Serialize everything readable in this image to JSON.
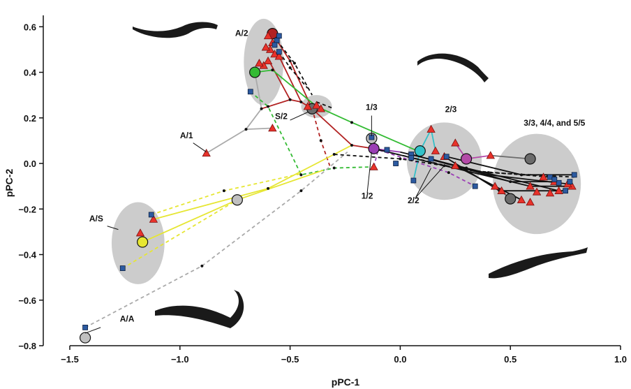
{
  "chart_data": {
    "type": "scatter",
    "title": "",
    "xlabel": "pPC-1",
    "ylabel": "pPC-2",
    "xlim": [
      -1.5,
      1.0
    ],
    "ylim": [
      -0.8,
      0.65
    ],
    "x_ticks": [
      "−1.5",
      "−1.0",
      "−0.5",
      "0.0",
      "0.5",
      "1.0"
    ],
    "y_ticks": [
      "−0.8",
      "−0.6",
      "−0.4",
      "−0.2",
      "0.0",
      "0.2",
      "0.4",
      "0.6"
    ],
    "x_tick_values": [
      -1.5,
      -1.0,
      -0.5,
      0.0,
      0.5,
      1.0
    ],
    "y_tick_values": [
      -0.8,
      -0.6,
      -0.4,
      -0.2,
      0.0,
      0.2,
      0.4,
      0.6
    ],
    "grid": false,
    "group_labels": [
      {
        "text": "A/2",
        "x": -0.72,
        "y": 0.56
      },
      {
        "text": "A/1",
        "x": -0.97,
        "y": 0.11
      },
      {
        "text": "S/2",
        "x": -0.54,
        "y": 0.195
      },
      {
        "text": "1/3",
        "x": -0.13,
        "y": 0.235
      },
      {
        "text": "2/3",
        "x": 0.23,
        "y": 0.225
      },
      {
        "text": "3/3, 4/4, and 5/5",
        "x": 0.7,
        "y": 0.165
      },
      {
        "text": "1/2",
        "x": -0.15,
        "y": -0.155
      },
      {
        "text": "2/2",
        "x": 0.06,
        "y": -0.175
      },
      {
        "text": "A/S",
        "x": -1.38,
        "y": -0.255
      },
      {
        "text": "A/A",
        "x": -1.24,
        "y": -0.695
      }
    ],
    "ellipses": [
      {
        "cx": -0.62,
        "cy": 0.445,
        "rx": 0.09,
        "ry": 0.19,
        "fill": "#cccccc"
      },
      {
        "cx": -0.38,
        "cy": 0.25,
        "rx": 0.07,
        "ry": 0.05,
        "fill": "#cccccc"
      },
      {
        "cx": 0.2,
        "cy": 0.01,
        "rx": 0.17,
        "ry": 0.17,
        "fill": "#cccccc"
      },
      {
        "cx": 0.62,
        "cy": -0.09,
        "rx": 0.2,
        "ry": 0.22,
        "fill": "#cccccc"
      },
      {
        "cx": -1.19,
        "cy": -0.35,
        "rx": 0.12,
        "ry": 0.18,
        "fill": "#cccccc"
      }
    ],
    "means": [
      {
        "name": "A/2 red",
        "x": -0.58,
        "y": 0.57,
        "color": "#b22222"
      },
      {
        "name": "A/2 green",
        "x": -0.66,
        "y": 0.4,
        "color": "#33bb33"
      },
      {
        "name": "S/2",
        "x": -0.4,
        "y": 0.24,
        "color": "#6b6b6b"
      },
      {
        "name": "1/3",
        "x": -0.13,
        "y": 0.11,
        "color": "#c0c0c0"
      },
      {
        "name": "1/2",
        "x": -0.12,
        "y": 0.065,
        "color": "#9b3fb5"
      },
      {
        "name": "2/3",
        "x": 0.09,
        "y": 0.055,
        "color": "#33c0c8"
      },
      {
        "name": "2/3 magenta",
        "x": 0.3,
        "y": 0.02,
        "color": "#b44aa8"
      },
      {
        "name": "3/3",
        "x": 0.59,
        "y": 0.02,
        "color": "#6b6b6b"
      },
      {
        "name": "5/5",
        "x": 0.5,
        "y": -0.155,
        "color": "#6b6b6b"
      },
      {
        "name": "mid",
        "x": -0.74,
        "y": -0.16,
        "color": "#c0c0c0"
      },
      {
        "name": "A/S",
        "x": -1.17,
        "y": -0.345,
        "color": "#e6e633"
      },
      {
        "name": "A/A",
        "x": -1.43,
        "y": -0.765,
        "color": "#c0c0c0"
      }
    ],
    "triangles": [
      [
        -0.6,
        0.56
      ],
      [
        -0.58,
        0.53
      ],
      [
        -0.59,
        0.5
      ],
      [
        -0.57,
        0.48
      ],
      [
        -0.6,
        0.45
      ],
      [
        -0.62,
        0.43
      ],
      [
        -0.64,
        0.44
      ],
      [
        -0.55,
        0.47
      ],
      [
        -0.61,
        0.51
      ],
      [
        -0.38,
        0.255
      ],
      [
        -0.42,
        0.25
      ],
      [
        -0.36,
        0.24
      ],
      [
        -0.88,
        0.045
      ],
      [
        -0.58,
        0.155
      ],
      [
        -0.12,
        -0.015
      ],
      [
        0.14,
        0.15
      ],
      [
        0.25,
        0.09
      ],
      [
        0.16,
        0.055
      ],
      [
        0.2,
        0.03
      ],
      [
        0.41,
        0.035
      ],
      [
        0.25,
        -0.01
      ],
      [
        0.43,
        -0.1
      ],
      [
        0.46,
        -0.12
      ],
      [
        0.55,
        -0.16
      ],
      [
        0.59,
        -0.17
      ],
      [
        0.59,
        -0.1
      ],
      [
        0.65,
        -0.06
      ],
      [
        0.7,
        -0.08
      ],
      [
        0.72,
        -0.12
      ],
      [
        0.78,
        -0.1
      ],
      [
        0.68,
        -0.13
      ],
      [
        0.76,
        -0.09
      ],
      [
        0.62,
        -0.125
      ],
      [
        -1.12,
        -0.245
      ],
      [
        -1.18,
        -0.305
      ]
    ],
    "squares": [
      [
        -0.55,
        0.56
      ],
      [
        -0.56,
        0.54
      ],
      [
        -0.57,
        0.52
      ],
      [
        -0.55,
        0.49
      ],
      [
        -0.68,
        0.315
      ],
      [
        -0.13,
        0.115
      ],
      [
        -0.06,
        0.06
      ],
      [
        0.05,
        0.04
      ],
      [
        0.14,
        0.02
      ],
      [
        0.05,
        0.025
      ],
      [
        -0.02,
        0.0
      ],
      [
        0.21,
        0.03
      ],
      [
        0.06,
        -0.075
      ],
      [
        0.34,
        -0.1
      ],
      [
        0.68,
        -0.06
      ],
      [
        0.72,
        -0.085
      ],
      [
        0.75,
        -0.12
      ],
      [
        0.79,
        -0.05
      ],
      [
        0.7,
        -0.07
      ],
      [
        0.77,
        -0.08
      ],
      [
        -1.13,
        -0.225
      ],
      [
        -1.26,
        -0.46
      ],
      [
        -1.43,
        -0.72
      ]
    ],
    "lines": [
      {
        "color": "#aaaaaa",
        "dashed": false,
        "points": [
          [
            -0.88,
            0.045
          ],
          [
            -0.7,
            0.15
          ],
          [
            -0.58,
            0.155
          ]
        ]
      },
      {
        "color": "#aaaaaa",
        "dashed": false,
        "points": [
          [
            -0.7,
            0.15
          ],
          [
            -0.63,
            0.24
          ],
          [
            -0.66,
            0.4
          ]
        ]
      },
      {
        "color": "#b22222",
        "dashed": false,
        "points": [
          [
            -0.63,
            0.24
          ],
          [
            -0.5,
            0.28
          ],
          [
            -0.59,
            0.44
          ]
        ]
      },
      {
        "color": "#b22222",
        "dashed": false,
        "points": [
          [
            -0.5,
            0.28
          ],
          [
            -0.45,
            0.27
          ],
          [
            -0.55,
            0.47
          ]
        ]
      },
      {
        "color": "#b22222",
        "dashed": false,
        "points": [
          [
            -0.45,
            0.27
          ],
          [
            -0.4,
            0.24
          ],
          [
            -0.22,
            0.08
          ],
          [
            -0.12,
            0.065
          ]
        ]
      },
      {
        "color": "#b22222",
        "dashed": false,
        "points": [
          [
            -0.58,
            0.57
          ],
          [
            -0.5,
            0.45
          ],
          [
            -0.4,
            0.24
          ]
        ]
      },
      {
        "color": "#b22222",
        "dashed": true,
        "points": [
          [
            -0.4,
            0.24
          ],
          [
            -0.36,
            0.1
          ],
          [
            -0.32,
            -0.01
          ]
        ]
      },
      {
        "color": "#33bb33",
        "dashed": false,
        "points": [
          [
            -0.66,
            0.4
          ],
          [
            -0.58,
            0.41
          ],
          [
            -0.38,
            0.25
          ],
          [
            -0.22,
            0.18
          ],
          [
            0.09,
            0.05
          ]
        ]
      },
      {
        "color": "#33bb33",
        "dashed": true,
        "points": [
          [
            -0.68,
            0.315
          ],
          [
            -0.6,
            0.25
          ],
          [
            -0.45,
            -0.05
          ],
          [
            -0.3,
            -0.02
          ],
          [
            -0.12,
            -0.015
          ]
        ]
      },
      {
        "color": "#e6e633",
        "dashed": false,
        "points": [
          [
            -1.12,
            -0.245
          ],
          [
            -0.6,
            -0.11
          ],
          [
            -0.3,
            0.04
          ],
          [
            -0.22,
            0.08
          ]
        ]
      },
      {
        "color": "#e6e633",
        "dashed": false,
        "points": [
          [
            -1.17,
            -0.345
          ],
          [
            -0.74,
            -0.16
          ],
          [
            -0.35,
            -0.03
          ]
        ]
      },
      {
        "color": "#e6e633",
        "dashed": true,
        "points": [
          [
            -1.13,
            -0.225
          ],
          [
            -0.8,
            -0.12
          ],
          [
            -0.45,
            -0.045
          ]
        ]
      },
      {
        "color": "#e6e633",
        "dashed": true,
        "points": [
          [
            -1.26,
            -0.46
          ],
          [
            -0.74,
            -0.16
          ]
        ]
      },
      {
        "color": "#aaaaaa",
        "dashed": true,
        "points": [
          [
            -1.43,
            -0.72
          ],
          [
            -0.9,
            -0.45
          ],
          [
            -0.45,
            -0.12
          ],
          [
            -0.24,
            0.05
          ]
        ]
      },
      {
        "color": "#9b3fb5",
        "dashed": false,
        "points": [
          [
            -0.13,
            0.115
          ],
          [
            -0.12,
            0.065
          ],
          [
            0.0,
            0.05
          ]
        ]
      },
      {
        "color": "#9b3fb5",
        "dashed": true,
        "points": [
          [
            -0.12,
            -0.015
          ],
          [
            -0.1,
            0.06
          ],
          [
            0.22,
            -0.04
          ],
          [
            0.34,
            -0.1
          ]
        ]
      },
      {
        "color": "#33c0c8",
        "dashed": false,
        "points": [
          [
            0.09,
            0.055
          ],
          [
            0.14,
            0.15
          ],
          [
            0.16,
            0.055
          ]
        ]
      },
      {
        "color": "#33c0c8",
        "dashed": false,
        "points": [
          [
            0.09,
            0.055
          ],
          [
            0.06,
            -0.075
          ]
        ]
      },
      {
        "color": "#b44aa8",
        "dashed": false,
        "points": [
          [
            0.3,
            0.02
          ],
          [
            0.41,
            0.035
          ]
        ]
      },
      {
        "color": "#b44aa8",
        "dashed": false,
        "points": [
          [
            0.3,
            0.02
          ],
          [
            0.25,
            0.09
          ]
        ]
      },
      {
        "color": "#6b6b6b",
        "dashed": false,
        "points": [
          [
            0.5,
            -0.155
          ],
          [
            0.43,
            -0.1
          ]
        ]
      },
      {
        "color": "#6b6b6b",
        "dashed": false,
        "points": [
          [
            0.59,
            0.02
          ],
          [
            0.41,
            0.035
          ]
        ]
      },
      {
        "color": "#111111",
        "dashed": false,
        "points": [
          [
            -0.12,
            0.065
          ],
          [
            0.2,
            -0.01
          ],
          [
            0.59,
            -0.1
          ],
          [
            0.78,
            -0.1
          ]
        ]
      },
      {
        "color": "#111111",
        "dashed": false,
        "points": [
          [
            0.0,
            0.05
          ],
          [
            0.3,
            -0.02
          ],
          [
            0.72,
            -0.12
          ]
        ]
      },
      {
        "color": "#111111",
        "dashed": false,
        "points": [
          [
            0.05,
            0.04
          ],
          [
            0.4,
            -0.05
          ],
          [
            0.76,
            -0.09
          ]
        ]
      },
      {
        "color": "#111111",
        "dashed": false,
        "points": [
          [
            0.14,
            0.02
          ],
          [
            0.5,
            -0.08
          ],
          [
            0.7,
            -0.08
          ]
        ]
      },
      {
        "color": "#111111",
        "dashed": false,
        "points": [
          [
            0.21,
            0.03
          ],
          [
            0.55,
            -0.05
          ],
          [
            0.79,
            -0.05
          ]
        ]
      },
      {
        "color": "#111111",
        "dashed": false,
        "points": [
          [
            0.2,
            0.03
          ],
          [
            0.45,
            -0.12
          ],
          [
            0.75,
            -0.12
          ]
        ]
      },
      {
        "color": "#111111",
        "dashed": false,
        "points": [
          [
            0.25,
            -0.01
          ],
          [
            0.55,
            -0.16
          ]
        ]
      },
      {
        "color": "#111111",
        "dashed": true,
        "points": [
          [
            -0.3,
            0.04
          ],
          [
            0.0,
            0.02
          ],
          [
            0.4,
            -0.04
          ],
          [
            0.79,
            -0.06
          ]
        ]
      },
      {
        "color": "#111111",
        "dashed": true,
        "points": [
          [
            -0.1,
            0.06
          ],
          [
            0.3,
            -0.03
          ],
          [
            0.68,
            -0.06
          ]
        ]
      },
      {
        "color": "#111111",
        "dashed": true,
        "points": [
          [
            -0.56,
            0.54
          ],
          [
            -0.48,
            0.44
          ],
          [
            -0.4,
            0.3
          ]
        ]
      },
      {
        "color": "#111111",
        "dashed": true,
        "points": [
          [
            -0.55,
            0.49
          ],
          [
            -0.5,
            0.42
          ],
          [
            -0.42,
            0.33
          ]
        ]
      },
      {
        "color": "#111111",
        "dashed": true,
        "points": [
          [
            -0.38,
            0.27
          ],
          [
            -0.3,
            0.24
          ]
        ]
      }
    ]
  }
}
